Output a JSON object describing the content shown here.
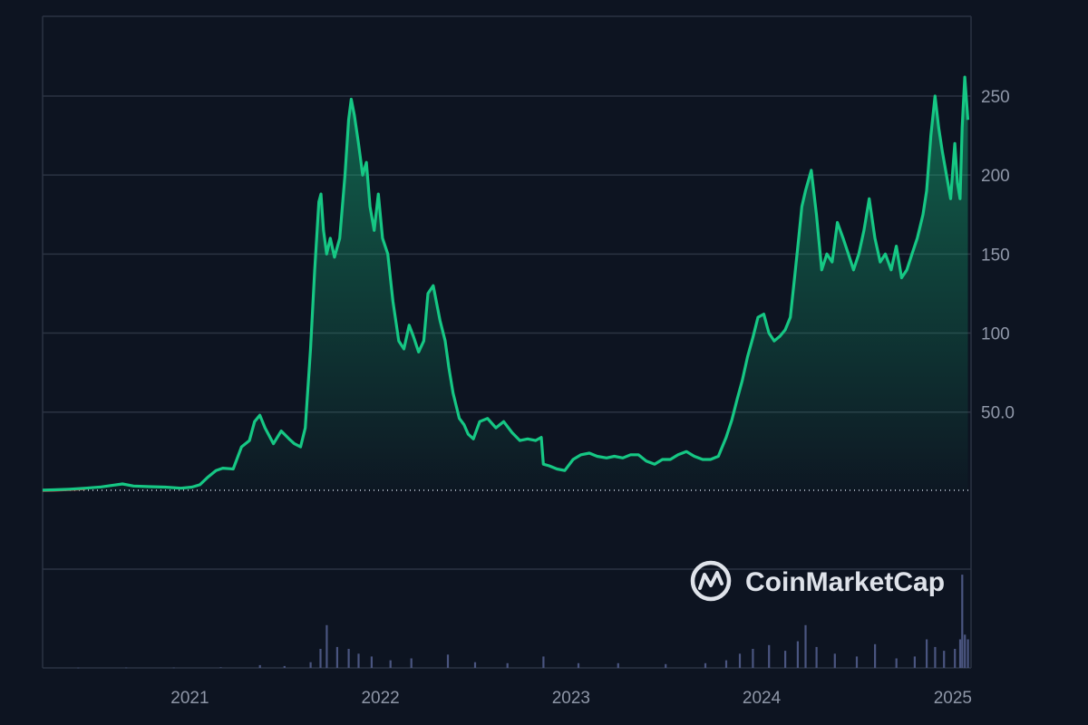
{
  "brand": {
    "name": "CoinMarketCap"
  },
  "colors": {
    "background": "#0d1421",
    "line": "#16c784",
    "grid": "#2b3342",
    "axis_text": "#8f97a8",
    "volume": "#4a5580",
    "baseline_dots": "#cfd6e4",
    "early_segment": "#ea3943"
  },
  "chart_data": {
    "type": "area",
    "title": "",
    "xlabel": "",
    "ylabel": "",
    "x_ticks": [
      "2021",
      "2022",
      "2023",
      "2024",
      "2025"
    ],
    "y_ticks": [
      "50.0",
      "100",
      "150",
      "200",
      "250"
    ],
    "y_tick_values": [
      50,
      100,
      150,
      200,
      250
    ],
    "ylim": [
      0,
      290
    ],
    "xlim": [
      "2020-03-25",
      "2025-02-05"
    ],
    "baseline_value": 0.5,
    "grid": true,
    "series": [
      {
        "values_type": "price",
        "x": [
          "2020-03-25",
          "2020-04-15",
          "2020-05-15",
          "2020-06-15",
          "2020-07-15",
          "2020-08-10",
          "2020-08-25",
          "2020-09-15",
          "2020-10-15",
          "2020-11-15",
          "2020-12-15",
          "2021-01-05",
          "2021-01-20",
          "2021-02-05",
          "2021-02-20",
          "2021-03-05",
          "2021-03-25",
          "2021-04-10",
          "2021-04-25",
          "2021-05-05",
          "2021-05-15",
          "2021-05-25",
          "2021-06-10",
          "2021-06-25",
          "2021-07-10",
          "2021-07-20",
          "2021-08-01",
          "2021-08-10",
          "2021-08-20",
          "2021-08-28",
          "2021-09-05",
          "2021-09-09",
          "2021-09-14",
          "2021-09-20",
          "2021-09-27",
          "2021-10-05",
          "2021-10-15",
          "2021-10-25",
          "2021-11-01",
          "2021-11-06",
          "2021-11-12",
          "2021-11-20",
          "2021-11-28",
          "2021-12-05",
          "2021-12-12",
          "2021-12-20",
          "2021-12-28",
          "2022-01-05",
          "2022-01-15",
          "2022-01-25",
          "2022-02-05",
          "2022-02-15",
          "2022-02-25",
          "2022-03-05",
          "2022-03-15",
          "2022-03-25",
          "2022-04-02",
          "2022-04-12",
          "2022-04-25",
          "2022-05-05",
          "2022-05-12",
          "2022-05-20",
          "2022-06-01",
          "2022-06-10",
          "2022-06-18",
          "2022-06-28",
          "2022-07-10",
          "2022-07-25",
          "2022-08-10",
          "2022-08-25",
          "2022-09-10",
          "2022-09-25",
          "2022-10-10",
          "2022-10-25",
          "2022-11-05",
          "2022-11-09",
          "2022-11-20",
          "2022-12-05",
          "2022-12-20",
          "2023-01-05",
          "2023-01-20",
          "2023-02-05",
          "2023-02-20",
          "2023-03-10",
          "2023-03-25",
          "2023-04-10",
          "2023-04-25",
          "2023-05-10",
          "2023-05-25",
          "2023-06-10",
          "2023-06-25",
          "2023-07-10",
          "2023-07-25",
          "2023-08-10",
          "2023-08-25",
          "2023-09-10",
          "2023-09-25",
          "2023-10-10",
          "2023-10-25",
          "2023-11-05",
          "2023-11-15",
          "2023-11-25",
          "2023-12-05",
          "2023-12-15",
          "2023-12-25",
          "2024-01-05",
          "2024-01-15",
          "2024-01-25",
          "2024-02-05",
          "2024-02-15",
          "2024-02-25",
          "2024-03-05",
          "2024-03-12",
          "2024-03-18",
          "2024-03-25",
          "2024-04-05",
          "2024-04-15",
          "2024-04-25",
          "2024-05-05",
          "2024-05-15",
          "2024-05-25",
          "2024-06-05",
          "2024-06-15",
          "2024-06-25",
          "2024-07-05",
          "2024-07-15",
          "2024-07-25",
          "2024-08-05",
          "2024-08-15",
          "2024-08-25",
          "2024-09-05",
          "2024-09-15",
          "2024-09-25",
          "2024-10-05",
          "2024-10-15",
          "2024-10-25",
          "2024-11-05",
          "2024-11-12",
          "2024-11-20",
          "2024-11-28",
          "2024-12-05",
          "2024-12-12",
          "2024-12-20",
          "2024-12-28",
          "2025-01-05",
          "2025-01-10",
          "2025-01-15",
          "2025-01-19",
          "2025-01-24",
          "2025-01-30"
        ],
        "values": [
          0.6,
          0.8,
          1.2,
          1.8,
          2.6,
          3.8,
          4.5,
          3.2,
          2.8,
          2.5,
          1.8,
          2.5,
          4,
          9,
          13,
          14.5,
          14,
          28,
          32,
          44,
          48,
          40,
          30,
          38,
          33,
          30,
          28,
          40,
          90,
          140,
          183,
          188,
          165,
          150,
          160,
          148,
          160,
          200,
          235,
          248,
          238,
          220,
          200,
          208,
          180,
          165,
          188,
          160,
          150,
          120,
          95,
          90,
          105,
          98,
          88,
          95,
          125,
          130,
          108,
          95,
          78,
          62,
          46,
          42,
          36,
          33,
          44,
          46,
          40,
          44,
          37,
          32,
          33,
          32,
          34,
          17,
          16,
          14,
          13,
          20,
          23,
          24,
          22,
          21,
          22,
          21,
          23,
          23,
          19,
          17,
          20,
          20,
          23,
          25,
          22,
          20,
          20,
          22,
          34,
          45,
          58,
          70,
          85,
          97,
          110,
          112,
          100,
          95,
          98,
          102,
          110,
          138,
          160,
          180,
          190,
          203,
          175,
          140,
          150,
          145,
          170,
          160,
          150,
          140,
          150,
          165,
          185,
          160,
          145,
          150,
          140,
          155,
          135,
          140,
          150,
          160,
          175,
          190,
          225,
          250,
          230,
          215,
          200,
          185,
          220,
          195,
          185,
          230,
          262,
          235
        ]
      }
    ],
    "volume": {
      "x": [
        "2020-06-01",
        "2020-09-01",
        "2020-12-01",
        "2021-03-01",
        "2021-05-15",
        "2021-07-01",
        "2021-08-20",
        "2021-09-08",
        "2021-09-20",
        "2021-10-10",
        "2021-11-01",
        "2021-11-20",
        "2021-12-15",
        "2022-01-20",
        "2022-03-01",
        "2022-05-10",
        "2022-07-01",
        "2022-09-01",
        "2022-11-09",
        "2023-01-15",
        "2023-04-01",
        "2023-07-01",
        "2023-09-15",
        "2023-10-25",
        "2023-11-20",
        "2023-12-15",
        "2024-01-15",
        "2024-02-15",
        "2024-03-10",
        "2024-03-25",
        "2024-04-15",
        "2024-05-20",
        "2024-07-01",
        "2024-08-05",
        "2024-09-15",
        "2024-10-20",
        "2024-11-12",
        "2024-11-28",
        "2024-12-15",
        "2025-01-05",
        "2025-01-15",
        "2025-01-19",
        "2025-01-24",
        "2025-01-30"
      ],
      "values": [
        0.2,
        0.3,
        0.3,
        0.6,
        3,
        2,
        6,
        20,
        45,
        22,
        20,
        15,
        12,
        8,
        10,
        14,
        6,
        5,
        12,
        5,
        5,
        4,
        5,
        8,
        15,
        20,
        24,
        18,
        28,
        45,
        22,
        15,
        12,
        25,
        10,
        12,
        30,
        22,
        18,
        20,
        30,
        98,
        35,
        30
      ],
      "max": 100
    }
  }
}
